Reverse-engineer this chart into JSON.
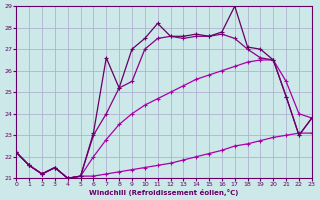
{
  "xlabel": "Windchill (Refroidissement éolien,°C)",
  "bg_color": "#cce8e8",
  "grid_color": "#aaaacc",
  "xlim": [
    0,
    23
  ],
  "ylim": [
    21,
    29
  ],
  "xticks": [
    0,
    1,
    2,
    3,
    4,
    5,
    6,
    7,
    8,
    9,
    10,
    11,
    12,
    13,
    14,
    15,
    16,
    17,
    18,
    19,
    20,
    21,
    22,
    23
  ],
  "yticks": [
    21,
    22,
    23,
    24,
    25,
    26,
    27,
    28,
    29
  ],
  "series": [
    {
      "color": "#aa00aa",
      "lw": 0.9,
      "x": [
        0,
        1,
        2,
        3,
        4,
        5,
        6,
        7,
        8,
        9,
        10,
        11,
        12,
        13,
        14,
        15,
        16,
        17,
        18,
        19,
        20,
        21,
        22,
        23
      ],
      "y": [
        22.2,
        21.6,
        21.2,
        21.5,
        21.0,
        21.1,
        21.1,
        21.2,
        21.3,
        21.4,
        21.5,
        21.6,
        21.7,
        21.85,
        22.0,
        22.15,
        22.3,
        22.5,
        22.6,
        22.75,
        22.9,
        23.0,
        23.1,
        23.1
      ]
    },
    {
      "color": "#aa00aa",
      "lw": 0.9,
      "x": [
        0,
        1,
        2,
        3,
        4,
        5,
        6,
        7,
        8,
        9,
        10,
        11,
        12,
        13,
        14,
        15,
        16,
        17,
        18,
        19,
        20,
        21,
        22,
        23
      ],
      "y": [
        22.2,
        21.6,
        21.2,
        21.5,
        21.0,
        21.1,
        22.0,
        22.8,
        23.5,
        24.0,
        24.4,
        24.7,
        25.0,
        25.3,
        25.6,
        25.8,
        26.0,
        26.2,
        26.4,
        26.5,
        26.5,
        25.5,
        24.0,
        23.8
      ]
    },
    {
      "color": "#880088",
      "lw": 0.9,
      "x": [
        0,
        1,
        2,
        3,
        4,
        5,
        6,
        7,
        8,
        9,
        10,
        11,
        12,
        13,
        14,
        15,
        16,
        17,
        18,
        19,
        20,
        21,
        22,
        23
      ],
      "y": [
        22.2,
        21.6,
        21.2,
        21.5,
        21.0,
        21.1,
        23.0,
        24.0,
        25.2,
        25.5,
        27.0,
        27.5,
        27.6,
        27.5,
        27.6,
        27.6,
        27.7,
        27.5,
        27.0,
        26.6,
        26.5,
        24.8,
        23.0,
        23.8
      ]
    },
    {
      "color": "#660066",
      "lw": 0.9,
      "x": [
        0,
        1,
        2,
        3,
        4,
        5,
        6,
        7,
        8,
        9,
        10,
        11,
        12,
        13,
        14,
        15,
        16,
        17,
        18,
        19,
        20,
        21,
        22,
        23
      ],
      "y": [
        22.2,
        21.6,
        21.2,
        21.5,
        21.0,
        21.1,
        23.1,
        26.6,
        25.2,
        27.0,
        27.5,
        28.2,
        27.6,
        27.6,
        27.7,
        27.6,
        27.8,
        29.0,
        27.1,
        27.0,
        26.5,
        24.8,
        23.0,
        23.8
      ]
    }
  ]
}
